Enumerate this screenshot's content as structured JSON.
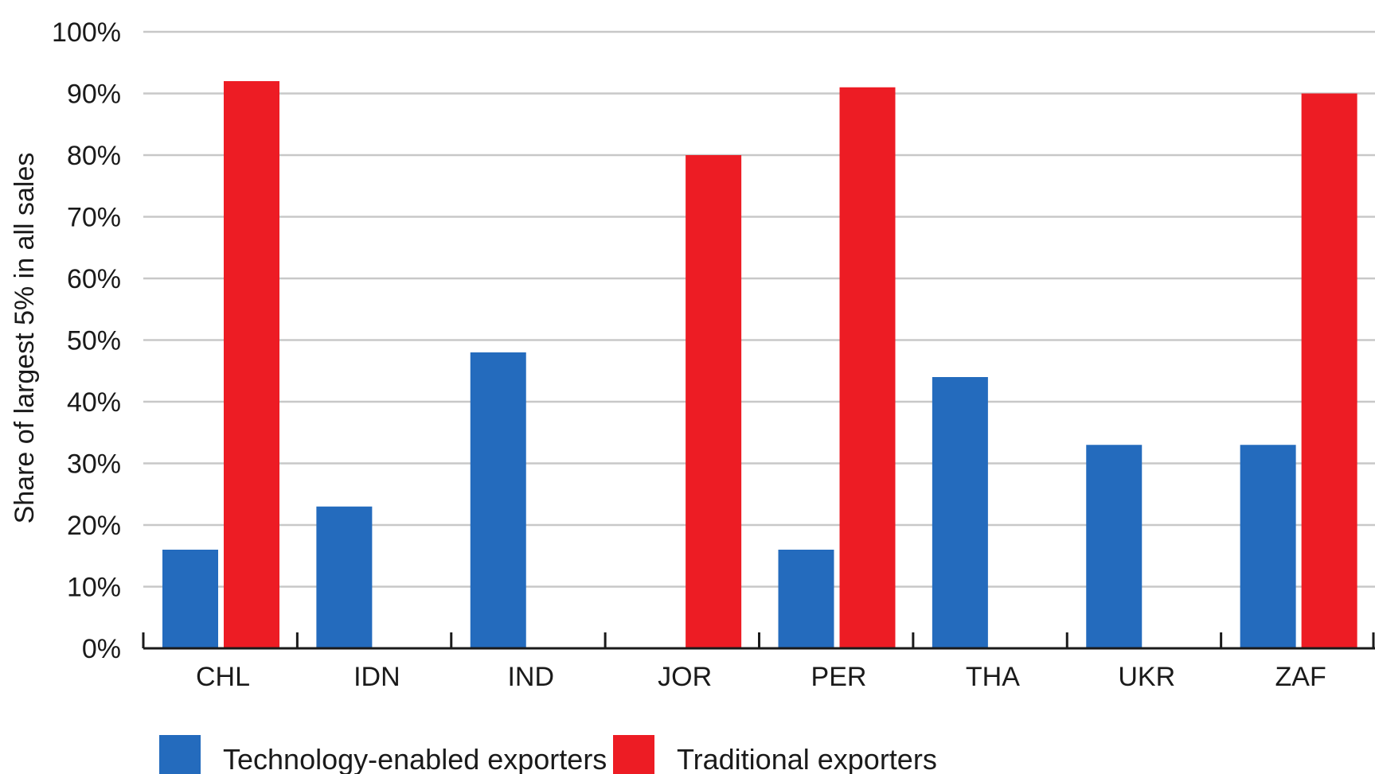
{
  "chart_data": {
    "type": "bar",
    "title": "",
    "xlabel": "",
    "ylabel": "Share of largest 5% in all sales",
    "ylim": [
      0,
      100
    ],
    "yticks": [
      0,
      10,
      20,
      30,
      40,
      50,
      60,
      70,
      80,
      90,
      100
    ],
    "ytick_labels": [
      "0%",
      "10%",
      "20%",
      "30%",
      "40%",
      "50%",
      "60%",
      "70%",
      "80%",
      "90%",
      "100%"
    ],
    "categories": [
      "CHL",
      "IDN",
      "IND",
      "JOR",
      "PER",
      "THA",
      "UKR",
      "ZAF"
    ],
    "series": [
      {
        "name": "Technology-enabled exporters",
        "color": "#246bbd",
        "values": [
          16,
          23,
          48,
          null,
          16,
          44,
          33,
          33
        ]
      },
      {
        "name": "Traditional exporters",
        "color": "#ed1c24",
        "values": [
          92,
          null,
          null,
          80,
          91,
          null,
          null,
          90
        ]
      }
    ],
    "grid": true,
    "legend_position": "bottom-left"
  }
}
